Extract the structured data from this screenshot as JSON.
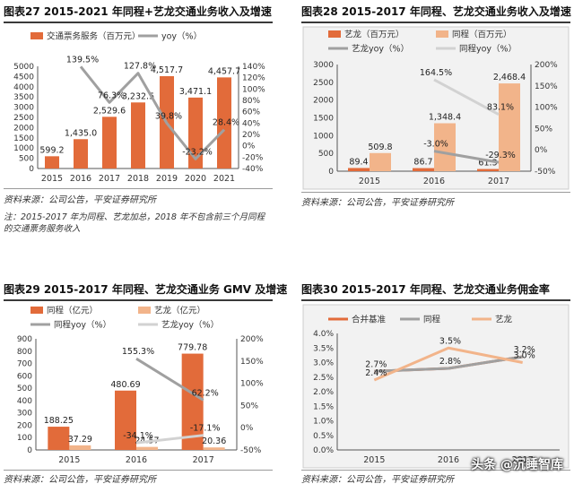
{
  "colors": {
    "orange": "#e26b3a",
    "lightorange": "#f2b48a",
    "gray": "#a0a0a0",
    "lightgray": "#d2d2d2",
    "chartbg": "#f2f2f2"
  },
  "watermark": "头条 @沉睡智库",
  "chart_data": [
    {
      "type": "bar",
      "title": "图表27   2015-2021 年同程+艺龙交通业务收入及增速",
      "source": "资料来源：公司公告，平安证券研究所",
      "note": "注：2015-2017 年为同程、艺龙加总，2018 年不包含前三个月同程的交通票务服务收入",
      "categories": [
        "2015",
        "2016",
        "2017",
        "2018",
        "2019",
        "2020",
        "2021"
      ],
      "ylim": [
        0,
        5000
      ],
      "yticks": [
        "0",
        "500",
        "1000",
        "1500",
        "2000",
        "2500",
        "3000",
        "3500",
        "4000",
        "4500",
        "5000"
      ],
      "y2lim": [
        -40,
        140
      ],
      "y2ticks": [
        "-40%",
        "-20%",
        "0%",
        "20%",
        "40%",
        "60%",
        "80%",
        "100%",
        "120%",
        "140%"
      ],
      "legend": [
        "交通票务服务（百万元）",
        "yoy（%）"
      ],
      "series": [
        {
          "name": "交通票务服务（百万元）",
          "kind": "bar",
          "axis": "left",
          "color": "#e26b3a",
          "values": [
            599.2,
            1435.0,
            2529.6,
            3232.5,
            4517.7,
            3471.1,
            4457.7
          ],
          "labels": [
            "599.2",
            "1,435.0",
            "2,529.6",
            "3,232.5",
            "4,517.7",
            "3,471.1",
            "4,457.7"
          ]
        },
        {
          "name": "yoy（%）",
          "kind": "line",
          "axis": "right",
          "color": "#a0a0a0",
          "values": [
            null,
            139.5,
            76.3,
            127.8,
            39.8,
            -23.2,
            28.4
          ],
          "labels": [
            "",
            "139.5%",
            "76.3%",
            "127.8%",
            "39.8%",
            "-23.2%",
            "28.4%"
          ]
        }
      ]
    },
    {
      "type": "bar",
      "title": "图表28   2015-2017 年同程、艺龙交通业务收入及增速",
      "source": "资料来源：公司公告，平安证券研究所",
      "categories": [
        "2015",
        "2016",
        "2017"
      ],
      "ylim": [
        0,
        3000
      ],
      "yticks": [
        "0",
        "500",
        "1000",
        "1500",
        "2000",
        "2500",
        "3000"
      ],
      "y2lim": [
        -50,
        200
      ],
      "y2ticks": [
        "-50%",
        "0%",
        "50%",
        "100%",
        "150%",
        "200%"
      ],
      "legend": [
        "艺龙（百万元）",
        "同程（百万元）",
        "艺龙yoy（%）",
        "同程yoy（%）"
      ],
      "series": [
        {
          "name": "艺龙（百万元）",
          "kind": "bar",
          "axis": "left",
          "color": "#e26b3a",
          "values": [
            89.4,
            86.7,
            61.3
          ],
          "labels": [
            "89.4",
            "86.7",
            "61.3"
          ]
        },
        {
          "name": "同程（百万元）",
          "kind": "bar",
          "axis": "left",
          "color": "#f2b48a",
          "values": [
            509.8,
            1348.4,
            2468.4
          ],
          "labels": [
            "509.8",
            "1,348.4",
            "2,468.4"
          ]
        },
        {
          "name": "艺龙yoy（%）",
          "kind": "line",
          "axis": "right",
          "color": "#a0a0a0",
          "values": [
            null,
            -3.0,
            -29.3
          ],
          "labels": [
            "",
            "-3.0%",
            "-29.3%"
          ]
        },
        {
          "name": "同程yoy（%）",
          "kind": "line",
          "axis": "right",
          "color": "#d2d2d2",
          "values": [
            null,
            164.5,
            83.1
          ],
          "labels": [
            "",
            "164.5%",
            "83.1%"
          ]
        }
      ]
    },
    {
      "type": "bar",
      "title": "图表29   2015-2017 年同程、艺龙交通业务 GMV 及增速",
      "source": "资料来源：公司公告，平安证券研究所",
      "categories": [
        "2015",
        "2016",
        "2017"
      ],
      "ylim": [
        0,
        900
      ],
      "yticks": [
        "0",
        "100",
        "200",
        "300",
        "400",
        "500",
        "600",
        "700",
        "800",
        "900"
      ],
      "y2lim": [
        -50,
        200
      ],
      "y2ticks": [
        "-50%",
        "0%",
        "50%",
        "100%",
        "150%",
        "200%"
      ],
      "legend": [
        "同程（亿元）",
        "艺龙（亿元）",
        "同程yoy（%）",
        "艺龙yoy（%）"
      ],
      "series": [
        {
          "name": "同程（亿元）",
          "kind": "bar",
          "axis": "left",
          "color": "#e26b3a",
          "values": [
            188.25,
            480.69,
            779.78
          ],
          "labels": [
            "188.25",
            "480.69",
            "779.78"
          ]
        },
        {
          "name": "艺龙（亿元）",
          "kind": "bar",
          "axis": "left",
          "color": "#f2b48a",
          "values": [
            37.29,
            24.57,
            20.36
          ],
          "labels": [
            "37.29",
            "24.57",
            "20.36"
          ]
        },
        {
          "name": "同程yoy（%）",
          "kind": "line",
          "axis": "right",
          "color": "#a0a0a0",
          "values": [
            null,
            155.3,
            62.2
          ],
          "labels": [
            "",
            "155.3%",
            "62.2%"
          ]
        },
        {
          "name": "艺龙yoy（%）",
          "kind": "line",
          "axis": "right",
          "color": "#d2d2d2",
          "values": [
            null,
            -34.1,
            -17.1
          ],
          "labels": [
            "",
            "-34.1%",
            "-17.1%"
          ]
        }
      ]
    },
    {
      "type": "line",
      "title": "图表30   2015-2017 年同程、艺龙交通业务佣金率",
      "source": "资料来源：公司公告，平安证券研究所",
      "categories": [
        "2015",
        "2016",
        "2017"
      ],
      "ylim": [
        0,
        4
      ],
      "yticks": [
        "0.0%",
        "0.5%",
        "1.0%",
        "1.5%",
        "2.0%",
        "2.5%",
        "3.0%",
        "3.5%",
        "4.0%"
      ],
      "legend": [
        "合并基准",
        "同程",
        "艺龙"
      ],
      "series": [
        {
          "name": "合并基准",
          "kind": "line",
          "color": "#e26b3a",
          "values": [
            2.7,
            2.8,
            3.2
          ],
          "labels": [
            "2.7%",
            "2.8%",
            "3.2%"
          ]
        },
        {
          "name": "同程",
          "kind": "line",
          "color": "#a0a0a0",
          "values": [
            2.7,
            2.8,
            3.2
          ],
          "labels": [
            "",
            "",
            ""
          ]
        },
        {
          "name": "艺龙",
          "kind": "line",
          "color": "#f2b48a",
          "values": [
            2.4,
            3.5,
            3.0
          ],
          "labels": [
            "2.4%",
            "3.5%",
            "3.0%"
          ]
        }
      ]
    }
  ]
}
